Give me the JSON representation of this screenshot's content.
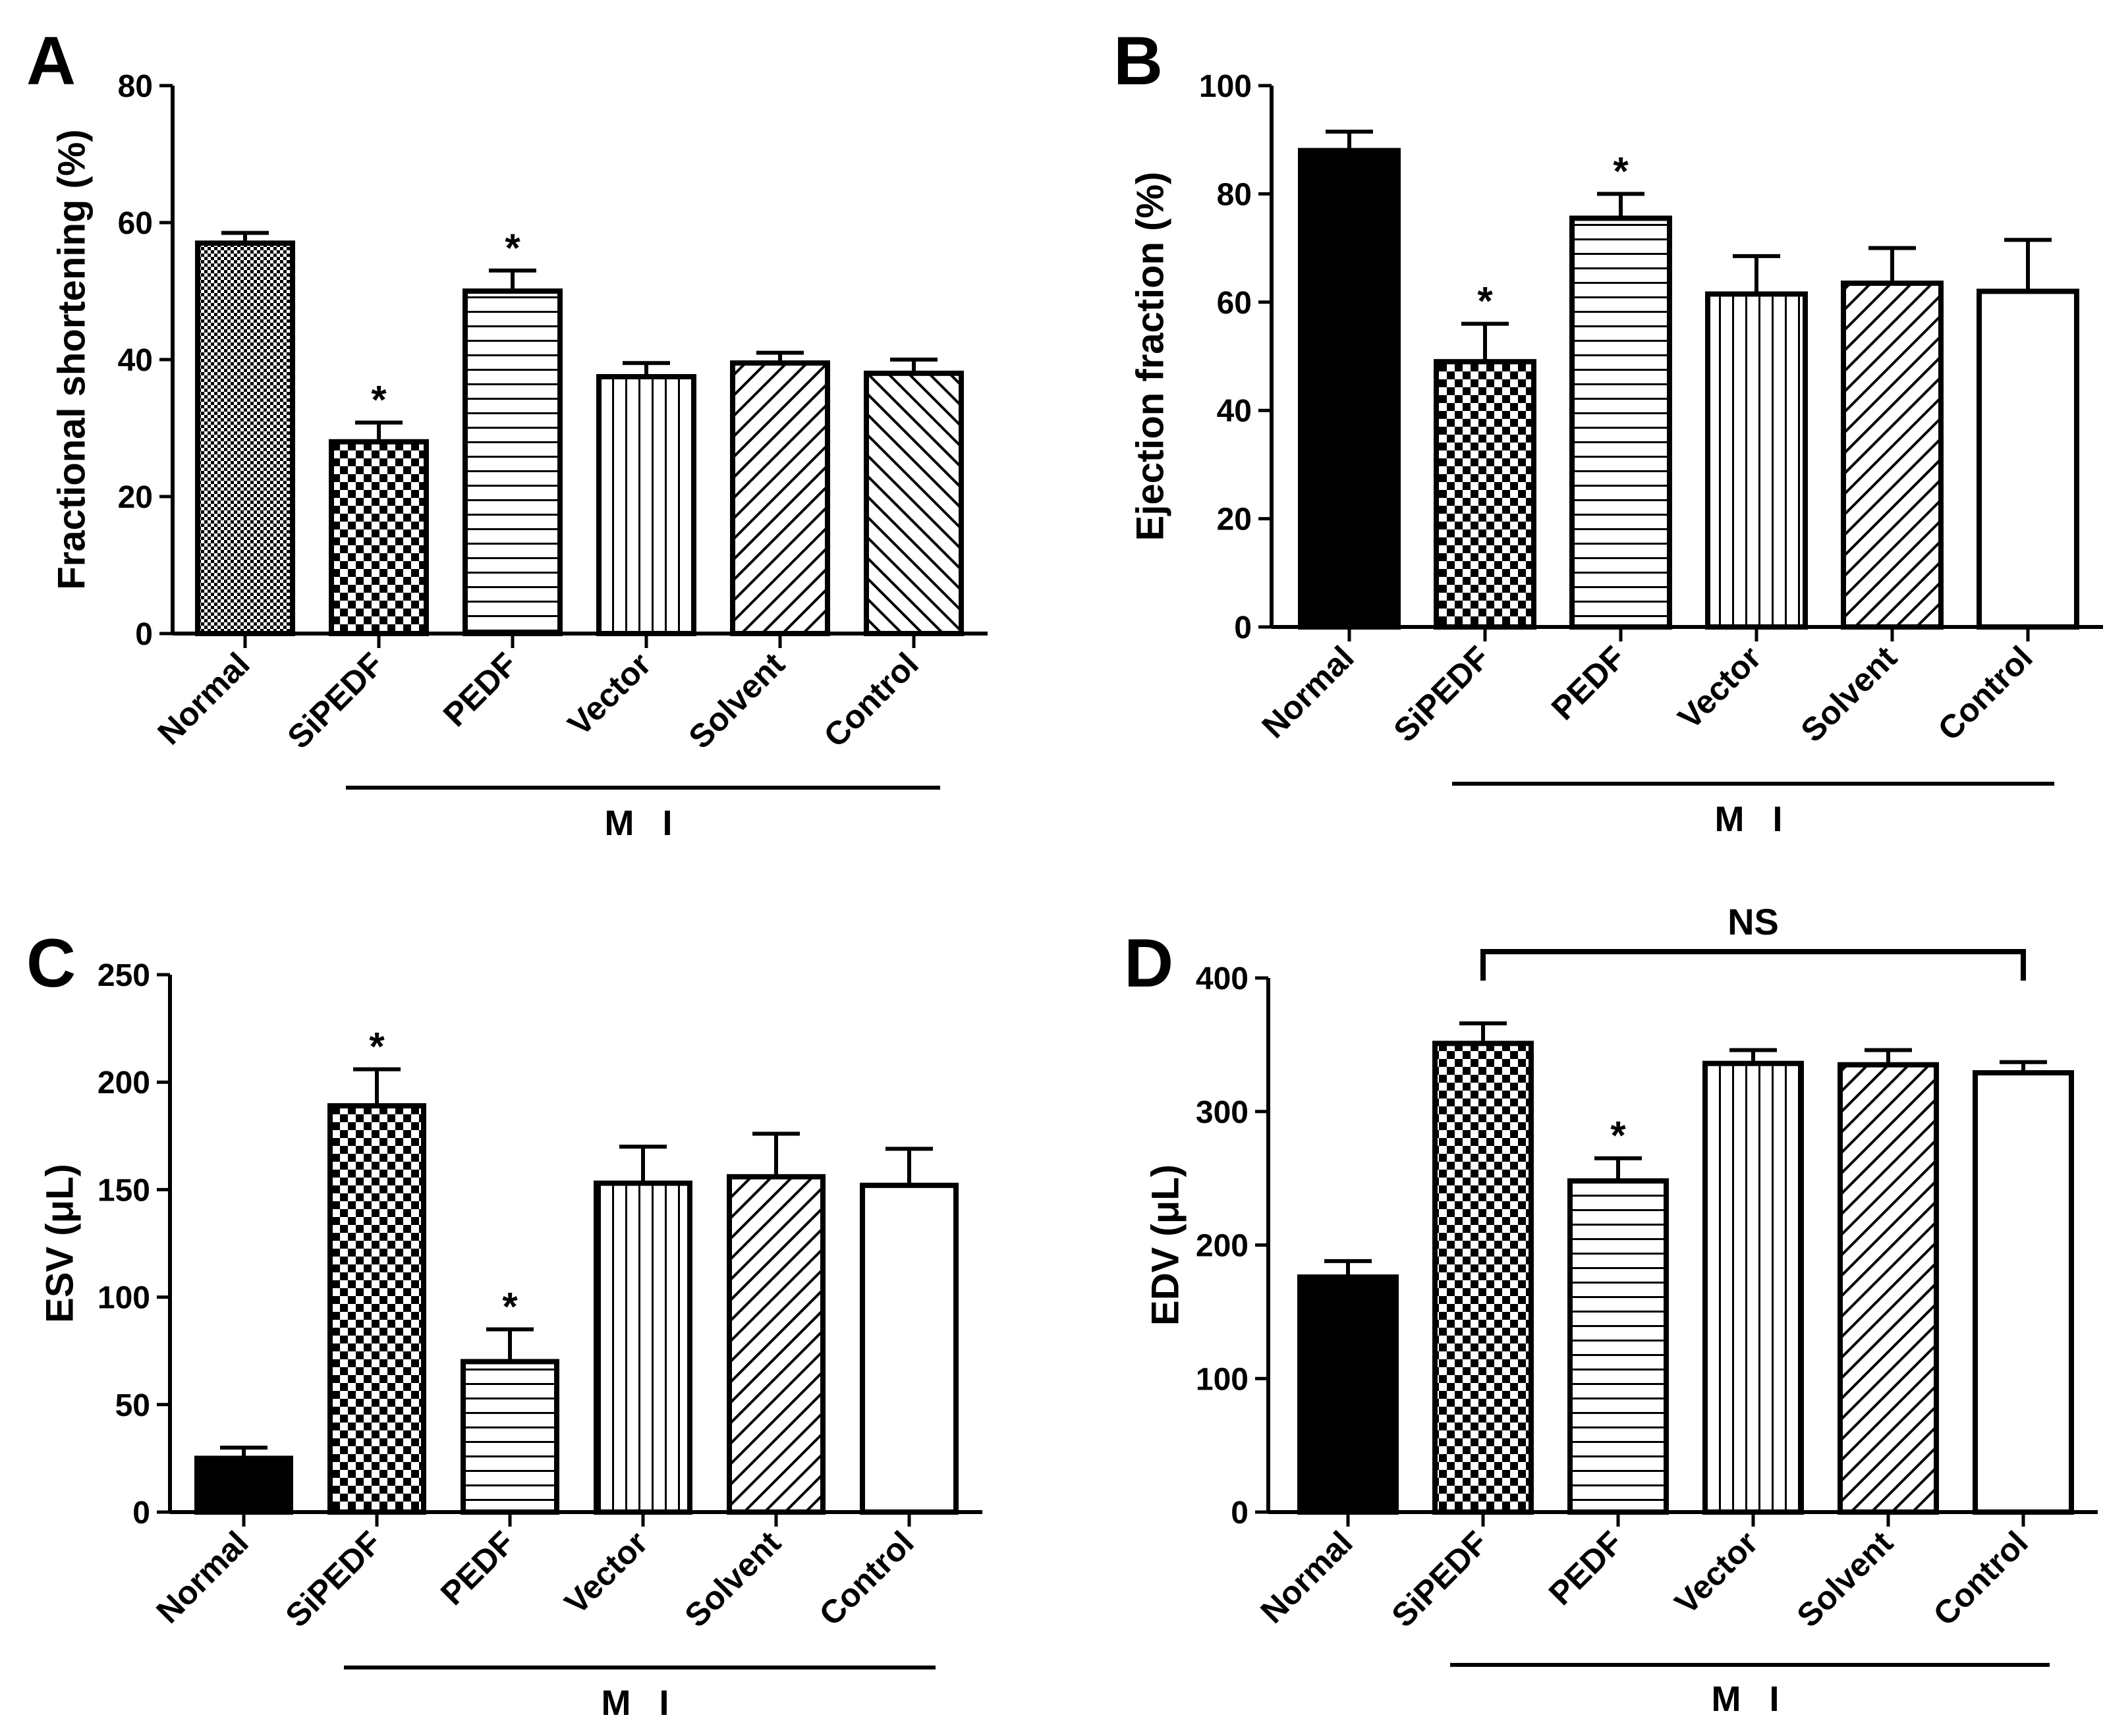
{
  "chart_data": [
    {
      "panel": "A",
      "type": "bar",
      "ylabel": "Fractional shortening (%)",
      "ylim": [
        0,
        80
      ],
      "yticks": [
        0,
        20,
        40,
        60,
        80
      ],
      "categories": [
        "Normal",
        "SiPEDF",
        "PEDF",
        "Vector",
        "Solvent",
        "Control"
      ],
      "values": [
        57,
        28,
        50,
        37.5,
        39.5,
        38
      ],
      "errors": [
        1.5,
        2.8,
        3,
        2,
        1.5,
        2
      ],
      "patterns": [
        "fine-check",
        "check",
        "hlines",
        "vlines",
        "diag-up",
        "diag-down"
      ],
      "significance": [
        "",
        "*",
        "*",
        "",
        "",
        ""
      ],
      "group_label": "M I",
      "group_span": [
        "SiPEDF",
        "Control"
      ]
    },
    {
      "panel": "B",
      "type": "bar",
      "ylabel": "Ejection fraction (%)",
      "ylim": [
        0,
        100
      ],
      "yticks": [
        0,
        20,
        40,
        60,
        80,
        100
      ],
      "categories": [
        "Normal",
        "SiPEDF",
        "PEDF",
        "Vector",
        "Solvent",
        "Control"
      ],
      "values": [
        88,
        49,
        75.5,
        61.5,
        63.5,
        62
      ],
      "errors": [
        3.5,
        7,
        4.5,
        7,
        6.5,
        9.5
      ],
      "patterns": [
        "solid",
        "check",
        "hlines",
        "vlines",
        "diag-up",
        "empty"
      ],
      "significance": [
        "",
        "*",
        "*",
        "",
        "",
        ""
      ],
      "group_label": "M I",
      "group_span": [
        "SiPEDF",
        "Control"
      ]
    },
    {
      "panel": "C",
      "type": "bar",
      "ylabel": "ESV (μL)",
      "ylim": [
        0,
        250
      ],
      "yticks": [
        0,
        50,
        100,
        150,
        200,
        250
      ],
      "categories": [
        "Normal",
        "SiPEDF",
        "PEDF",
        "Vector",
        "Solvent",
        "Control"
      ],
      "values": [
        25,
        189,
        70,
        153,
        156,
        152
      ],
      "errors": [
        5,
        17,
        15,
        17,
        20,
        17
      ],
      "patterns": [
        "solid",
        "check",
        "hlines",
        "vlines",
        "diag-up",
        "empty"
      ],
      "significance": [
        "",
        "*",
        "*",
        "",
        "",
        ""
      ],
      "group_label": "M I",
      "group_span": [
        "SiPEDF",
        "Control"
      ]
    },
    {
      "panel": "D",
      "type": "bar",
      "ylabel": "EDV (μL)",
      "ylim": [
        0,
        400
      ],
      "yticks": [
        0,
        100,
        200,
        300,
        400
      ],
      "categories": [
        "Normal",
        "SiPEDF",
        "PEDF",
        "Vector",
        "Solvent",
        "Control"
      ],
      "values": [
        176,
        351,
        248,
        336,
        335,
        329
      ],
      "errors": [
        12,
        15,
        17,
        10,
        11,
        8
      ],
      "patterns": [
        "solid",
        "check",
        "hlines",
        "vlines",
        "diag-up",
        "empty"
      ],
      "significance": [
        "",
        "",
        "*",
        "",
        "",
        ""
      ],
      "group_label": "M I",
      "group_span": [
        "SiPEDF",
        "Control"
      ],
      "bracket": {
        "label": "NS",
        "from": "SiPEDF",
        "to": "Control"
      }
    }
  ]
}
